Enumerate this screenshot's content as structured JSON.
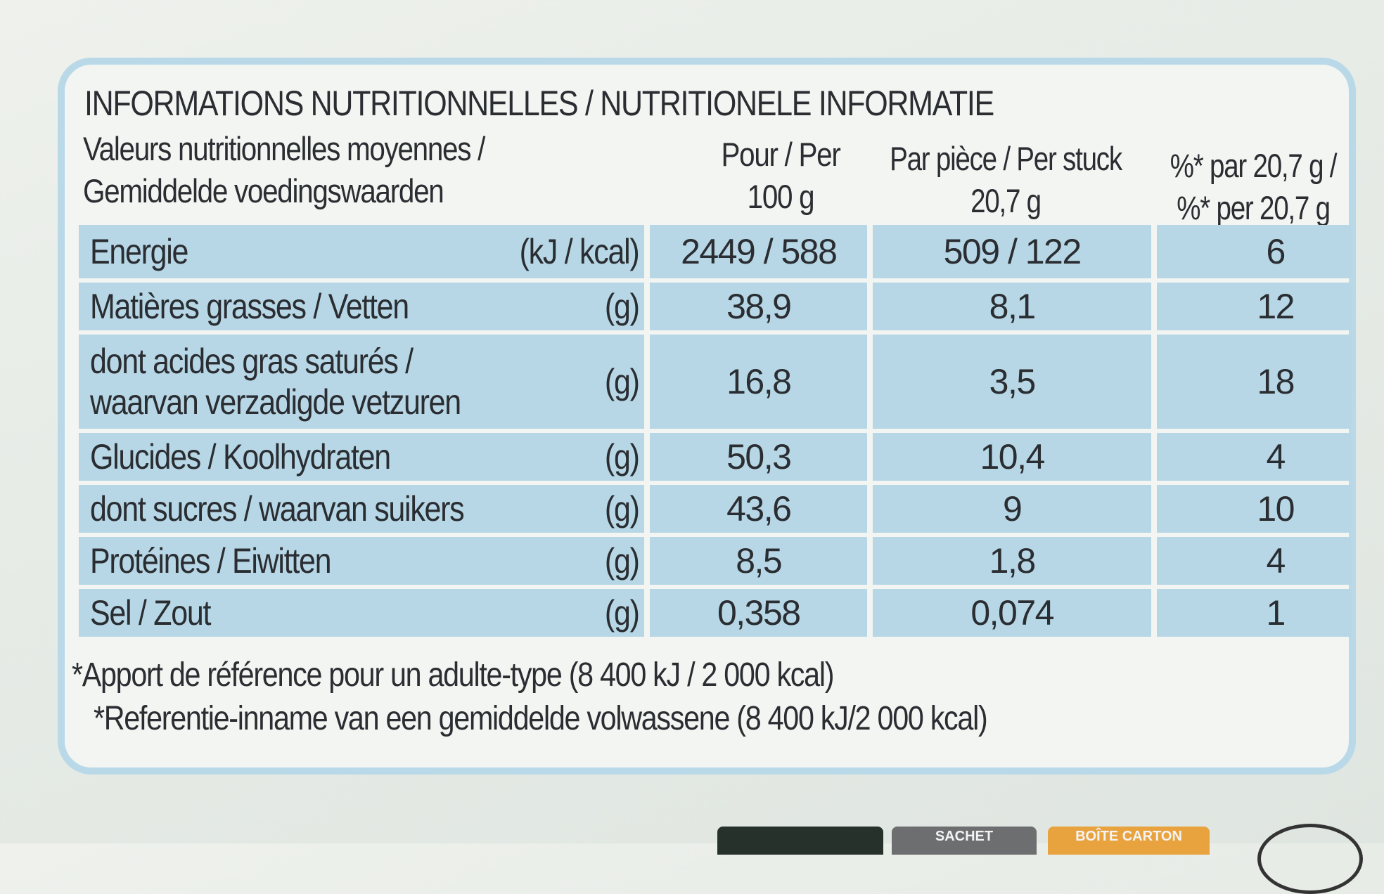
{
  "title": "INFORMATIONS NUTRITIONNELLES / NUTRITIONELE INFORMATIE",
  "header": {
    "label_line1": "Valeurs nutritionnelles moyennes /",
    "label_line2": "Gemiddelde voedingswaarden",
    "col100_line1": "Pour / Per",
    "col100_line2": "100 g",
    "colpiece_line1": "Par pièce / Per stuck",
    "colpiece_line2": "20,7 g",
    "colpct_line1": "%* par 20,7 g /",
    "colpct_line2": "%* per 20,7 g"
  },
  "rows": [
    {
      "label": "Energie",
      "unit": "(kJ / kcal)",
      "per100": "2449 / 588",
      "perpiece": "509 / 122",
      "pct": "6"
    },
    {
      "label": "Matières grasses / Vetten",
      "unit": "(g)",
      "per100": "38,9",
      "perpiece": "8,1",
      "pct": "12"
    },
    {
      "label": "dont acides gras saturés /",
      "label2": "waarvan verzadigde vetzuren",
      "unit": "(g)",
      "per100": "16,8",
      "perpiece": "3,5",
      "pct": "18"
    },
    {
      "label": "Glucides / Koolhydraten",
      "unit": "(g)",
      "per100": "50,3",
      "perpiece": "10,4",
      "pct": "4"
    },
    {
      "label": "dont sucres / waarvan suikers",
      "unit": "(g)",
      "per100": "43,6",
      "perpiece": "9",
      "pct": "10"
    },
    {
      "label": "Protéines / Eiwitten",
      "unit": "(g)",
      "per100": "8,5",
      "perpiece": "1,8",
      "pct": "4"
    },
    {
      "label": "Sel / Zout",
      "unit": "(g)",
      "per100": "0,358",
      "perpiece": "0,074",
      "pct": "1"
    }
  ],
  "footnote1": "*Apport de référence pour un adulte-type (8 400 kJ / 2 000 kcal)",
  "footnote2": "*Referentie-inname van een gemiddelde volwassene (8 400 kJ/2 000 kcal)",
  "badges": {
    "sachet": "SACHET",
    "boite": "BOÎTE CARTON"
  },
  "colors": {
    "row_fill": "#b7d7e6",
    "border": "#b9d9e8",
    "background": "#f2f5f1",
    "badge_orange": "#e9a33e",
    "badge_grey": "#6d6e70",
    "badge_dark": "#27312b"
  }
}
